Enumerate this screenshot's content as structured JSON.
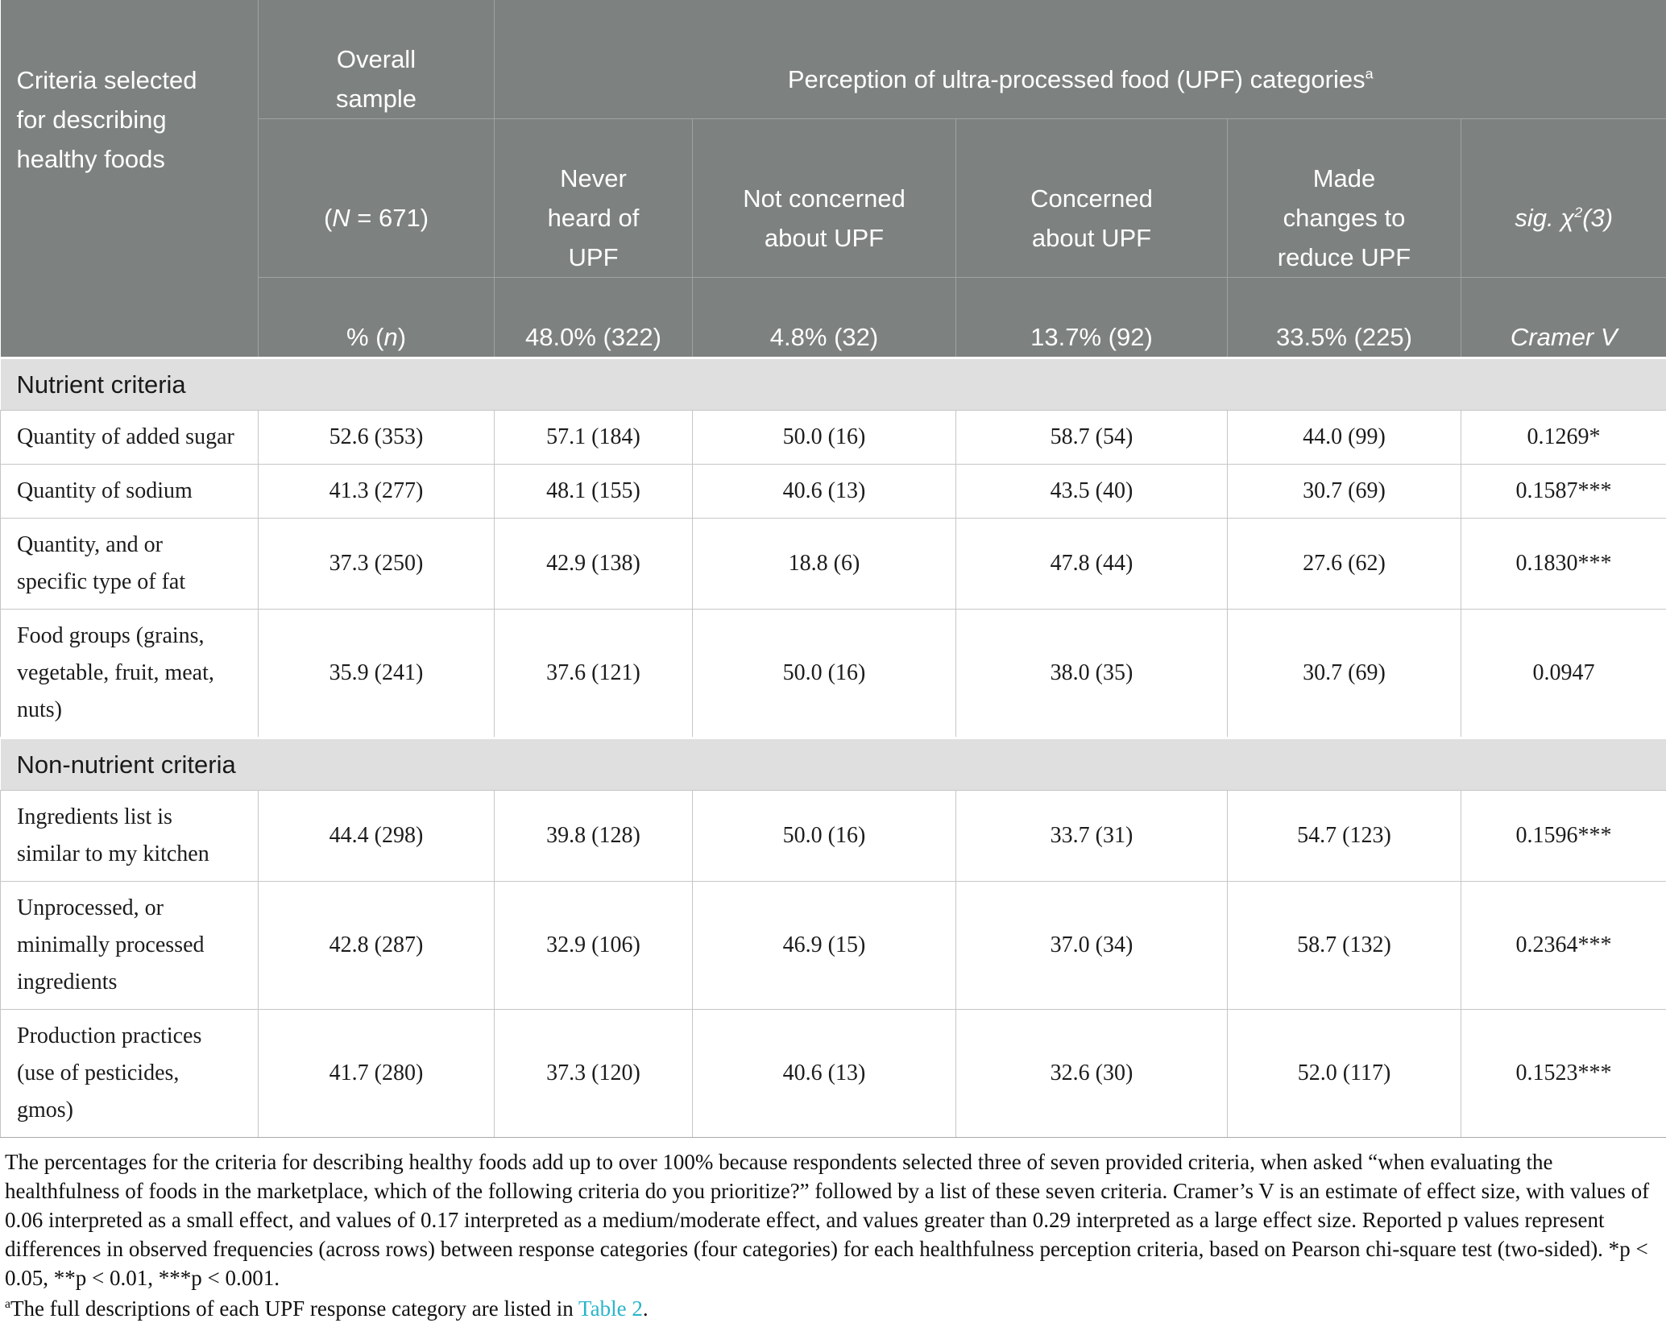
{
  "table": {
    "header": {
      "criteria": "Criteria selected\nfor describing\nhealthy foods",
      "overall": "Overall\nsample",
      "perception": "Perception of ultra-processed food (UPF) categories",
      "perception_sup": "a",
      "n_open": "(",
      "n_symbol": "N",
      "n_rest": " = 671)",
      "col_never": "Never\nheard of\nUPF",
      "col_notconcerned": "Not concerned\nabout UPF",
      "col_concerned": "Concerned\nabout UPF",
      "col_changes": "Made\nchanges to\nreduce UPF",
      "sig_pre": "sig. ",
      "sig_chi": "χ",
      "sig_sup": "2",
      "sig_post": "(3)",
      "pct_open": "% (",
      "pct_symbol": "n",
      "pct_close": ")",
      "val_never": "48.0% (322)",
      "val_notconcerned": "4.8% (32)",
      "val_concerned": "13.7% (92)",
      "val_changes": "33.5% (225)",
      "cramer": "Cramer V"
    },
    "sections": [
      {
        "title": "Nutrient criteria",
        "rows": [
          {
            "label": "Quantity of added sugar",
            "values": [
              "52.6 (353)",
              "57.1 (184)",
              "50.0 (16)",
              "58.7 (54)",
              "44.0 (99)",
              "0.1269*"
            ]
          },
          {
            "label": "Quantity of sodium",
            "values": [
              "41.3 (277)",
              "48.1 (155)",
              "40.6 (13)",
              "43.5 (40)",
              "30.7 (69)",
              "0.1587***"
            ]
          },
          {
            "label": "Quantity, and or\nspecific type of fat",
            "values": [
              "37.3 (250)",
              "42.9 (138)",
              "18.8 (6)",
              "47.8 (44)",
              "27.6 (62)",
              "0.1830***"
            ]
          },
          {
            "label": "Food groups (grains,\nvegetable, fruit, meat,\nnuts)",
            "values": [
              "35.9 (241)",
              "37.6 (121)",
              "50.0 (16)",
              "38.0 (35)",
              "30.7 (69)",
              "0.0947"
            ]
          }
        ]
      },
      {
        "title": "Non-nutrient criteria",
        "rows": [
          {
            "label": "Ingredients list is\nsimilar to my kitchen",
            "values": [
              "44.4 (298)",
              "39.8 (128)",
              "50.0 (16)",
              "33.7 (31)",
              "54.7 (123)",
              "0.1596***"
            ]
          },
          {
            "label": "Unprocessed, or\nminimally processed\ningredients",
            "values": [
              "42.8 (287)",
              "32.9 (106)",
              "46.9 (15)",
              "37.0 (34)",
              "58.7 (132)",
              "0.2364***"
            ]
          },
          {
            "label": "Production practices\n(use of pesticides,\ngmos)",
            "values": [
              "41.7 (280)",
              "37.3 (120)",
              "40.6 (13)",
              "32.6 (30)",
              "52.0 (117)",
              "0.1523***"
            ]
          }
        ]
      }
    ]
  },
  "footnotes": {
    "seg1": "The percentages for the criteria for describing healthy foods add up to over 100% because respondents selected three of seven provided criteria, when asked “when evaluating the healthfulness of foods in the marketplace, which of the following criteria do you prioritize?” followed by a list of these seven criteria. Cramer’s V is an estimate of effect size, with values of 0.06 interpreted as a small effect, and values of 0.17 interpreted as a medium/moderate effect, and values greater than 0.29 interpreted as a large effect size. Reported ",
    "seg2": "p",
    "seg3": " values represent differences in observed frequencies (across rows) between response categories (four categories) for each healthfulness perception criteria, based on Pearson chi-square test (two-sided). *",
    "seg4": "p",
    "seg5": " < 0.05, **",
    "seg6": "p",
    "seg7": " < 0.01, ***",
    "seg8": "p",
    "seg9": " < 0.001.",
    "a_sup": "a",
    "a_text": "The full descriptions of each UPF response category are listed in ",
    "a_link": "Table 2",
    "a_period": "."
  },
  "colors": {
    "header_bg": "#7d8180",
    "section_bg": "#e0dfdf",
    "link": "#29b5c8"
  }
}
